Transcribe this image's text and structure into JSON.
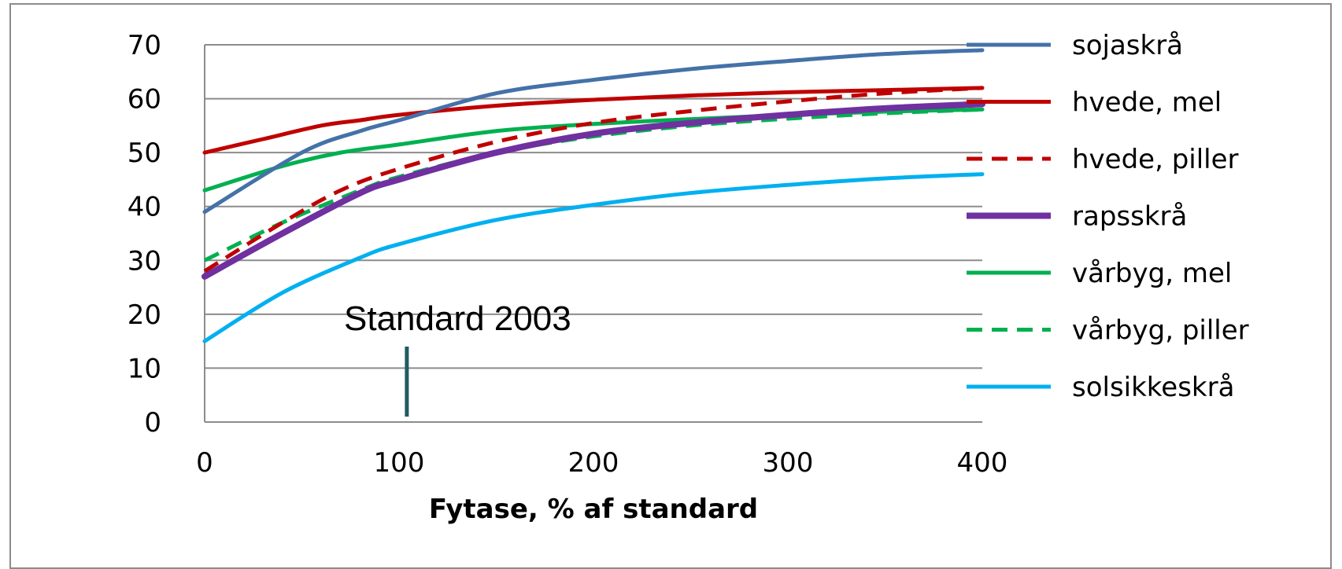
{
  "chart_data": {
    "type": "line",
    "title": "",
    "xlabel": "Fytase, % af standard",
    "ylabel": "",
    "xlim": [
      0,
      400
    ],
    "ylim": [
      0,
      70
    ],
    "xticks": [
      0,
      100,
      200,
      300,
      400
    ],
    "yticks": [
      0,
      10,
      20,
      30,
      40,
      50,
      60,
      70
    ],
    "grid": "horizontal",
    "legend_position": "right",
    "annotation": {
      "text": "Standard 2003",
      "x": 104,
      "y_from": 1,
      "y_to": 14,
      "color": "#1f5c63"
    },
    "series": [
      {
        "name": "sojaskrå",
        "color": "#4472a8",
        "dash": "solid",
        "width": 5,
        "x": [
          0,
          50,
          80,
          100,
          150,
          200,
          250,
          300,
          350,
          400
        ],
        "y": [
          39,
          50,
          54,
          56,
          61,
          63.5,
          65.5,
          67,
          68.3,
          69
        ]
      },
      {
        "name": "hvede, mel",
        "color": "#c00000",
        "dash": "solid",
        "width": 5,
        "x": [
          0,
          30,
          60,
          80,
          100,
          150,
          200,
          250,
          300,
          350,
          400
        ],
        "y": [
          50,
          52.5,
          55,
          56,
          57,
          58.7,
          59.8,
          60.6,
          61.2,
          61.6,
          62
        ]
      },
      {
        "name": "hvede, piller",
        "color": "#c00000",
        "dash": "dashed",
        "width": 5,
        "x": [
          0,
          40,
          70,
          100,
          150,
          200,
          250,
          300,
          350,
          400
        ],
        "y": [
          28,
          37,
          43,
          47,
          52,
          55.5,
          57.7,
          59.5,
          61,
          62
        ]
      },
      {
        "name": "rapsskrå",
        "color": "#7030a0",
        "dash": "solid",
        "width": 8,
        "x": [
          0,
          40,
          80,
          100,
          150,
          200,
          250,
          300,
          350,
          400
        ],
        "y": [
          27,
          35,
          42.5,
          45,
          50,
          53.5,
          55.5,
          57,
          58.2,
          59
        ]
      },
      {
        "name": "vårbyg, mel",
        "color": "#00b050",
        "dash": "solid",
        "width": 5,
        "x": [
          0,
          40,
          70,
          100,
          150,
          200,
          250,
          300,
          350,
          400
        ],
        "y": [
          43,
          47.5,
          50,
          51.5,
          54,
          55.3,
          56.2,
          57,
          57.6,
          58
        ]
      },
      {
        "name": "vårbyg, piller",
        "color": "#00b050",
        "dash": "dashed",
        "width": 5,
        "x": [
          0,
          40,
          80,
          100,
          150,
          200,
          250,
          300,
          350,
          400
        ],
        "y": [
          30,
          37,
          43,
          45.5,
          50,
          53,
          55,
          56.3,
          57.3,
          58
        ]
      },
      {
        "name": "solsikkeskrå",
        "color": "#00b0f0",
        "dash": "solid",
        "width": 5,
        "x": [
          0,
          40,
          80,
          100,
          150,
          200,
          250,
          300,
          350,
          400
        ],
        "y": [
          15,
          24,
          30.5,
          33,
          37.5,
          40.3,
          42.5,
          44,
          45.2,
          46
        ]
      }
    ]
  }
}
